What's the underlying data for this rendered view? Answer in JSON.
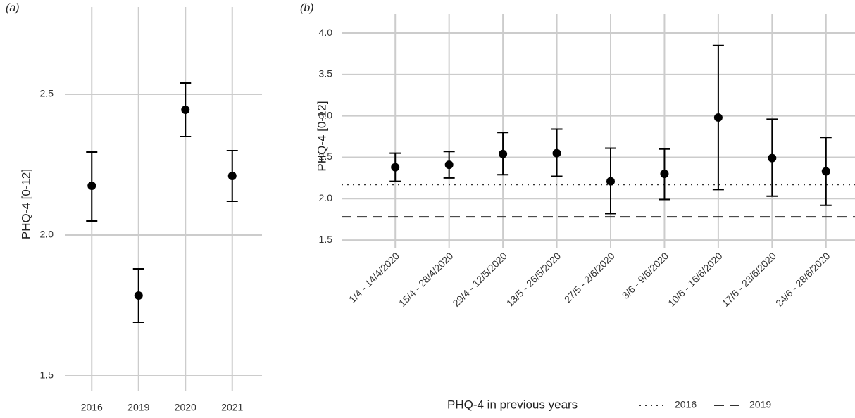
{
  "chart_data": [
    {
      "type": "errorbar",
      "panel_label": "(a)",
      "y_label": "PHQ-4 [0-12]",
      "categories": [
        "2016",
        "2019",
        "2020",
        "2021"
      ],
      "values": [
        2.175,
        1.785,
        2.445,
        2.21
      ],
      "lower": [
        2.05,
        1.69,
        2.35,
        2.12
      ],
      "upper": [
        2.295,
        1.88,
        2.54,
        2.3
      ],
      "color": "#000000",
      "ylim": [
        1.46,
        2.76
      ],
      "yticks": [
        1.5,
        {
          "value": 2.0,
          "label": "2.0"
        },
        2.5
      ],
      "grid": true
    },
    {
      "type": "errorbar",
      "panel_label": "(b)",
      "y_label": "PHQ-4 [0-12]",
      "categories": [
        "1/4 - 14/4/2020",
        "15/4 - 28/4/2020",
        "29/4 - 12/5/2020",
        "13/5 - 26/5/2020",
        "27/5 - 2/6/2020",
        "3/6 - 9/6/2020",
        "10/6 - 16/6/2020",
        "17/6 - 23/6/2020",
        "24/6 - 28/6/2020"
      ],
      "values": [
        2.38,
        2.41,
        2.54,
        2.55,
        2.21,
        2.3,
        2.98,
        2.49,
        2.33
      ],
      "lower": [
        2.21,
        2.25,
        2.29,
        2.27,
        1.82,
        1.99,
        2.11,
        2.03,
        1.92
      ],
      "upper": [
        2.55,
        2.57,
        2.8,
        2.84,
        2.61,
        2.6,
        3.85,
        2.96,
        2.74
      ],
      "color": "#000000",
      "ylim": [
        1.45,
        4.06
      ],
      "yticks": [
        1.5,
        {
          "value": 2.0,
          "label": "2.0"
        },
        2.5,
        {
          "value": 3.0,
          "label": "3.0"
        },
        3.5,
        {
          "value": 4.0,
          "label": "4.0"
        }
      ],
      "grid": true,
      "legend_title": "PHQ-4 in previous years",
      "reference_lines": [
        {
          "name": "2016",
          "value": 2.17,
          "style": "dotted",
          "color": "#333333"
        },
        {
          "name": "2019",
          "value": 1.78,
          "style": "dashed",
          "color": "#333333"
        }
      ]
    }
  ]
}
